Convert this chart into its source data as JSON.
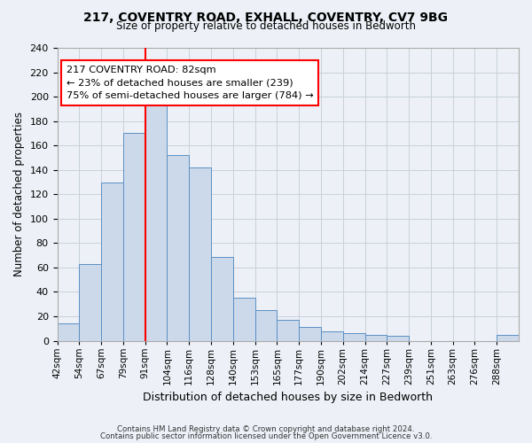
{
  "title1": "217, COVENTRY ROAD, EXHALL, COVENTRY, CV7 9BG",
  "title2": "Size of property relative to detached houses in Bedworth",
  "xlabel": "Distribution of detached houses by size in Bedworth",
  "ylabel": "Number of detached properties",
  "bin_labels": [
    "42sqm",
    "54sqm",
    "67sqm",
    "79sqm",
    "91sqm",
    "104sqm",
    "116sqm",
    "128sqm",
    "140sqm",
    "153sqm",
    "165sqm",
    "177sqm",
    "190sqm",
    "202sqm",
    "214sqm",
    "227sqm",
    "239sqm",
    "251sqm",
    "263sqm",
    "276sqm",
    "288sqm"
  ],
  "bar_heights": [
    14,
    63,
    130,
    170,
    198,
    152,
    142,
    69,
    35,
    25,
    17,
    11,
    8,
    6,
    5,
    4,
    0,
    0,
    0,
    0,
    5
  ],
  "bar_color": "#ccd9ea",
  "bar_edge_color": "#5b8fc4",
  "ylim": [
    0,
    240
  ],
  "yticks": [
    0,
    20,
    40,
    60,
    80,
    100,
    120,
    140,
    160,
    180,
    200,
    220,
    240
  ],
  "red_line_x": 4.0,
  "annotation_title": "217 COVENTRY ROAD: 82sqm",
  "annotation_line1": "← 23% of detached houses are smaller (239)",
  "annotation_line2": "75% of semi-detached houses are larger (784) →",
  "grid_color": "#c8d0dc",
  "bg_color": "#edf1f7",
  "footer1": "Contains HM Land Registry data © Crown copyright and database right 2024.",
  "footer2": "Contains public sector information licensed under the Open Government Licence v3.0."
}
